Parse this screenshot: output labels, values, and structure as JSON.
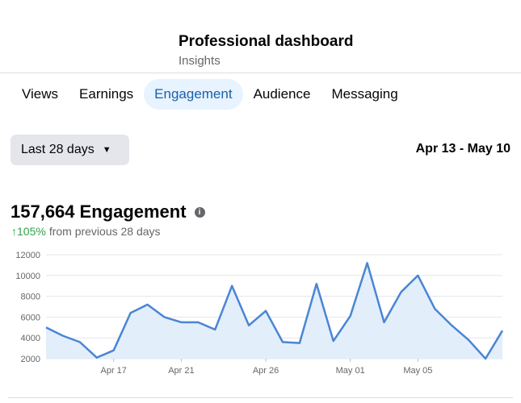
{
  "header": {
    "title": "Professional dashboard",
    "subtitle": "Insights"
  },
  "tabs": [
    {
      "label": "Views"
    },
    {
      "label": "Earnings"
    },
    {
      "label": "Engagement",
      "active": true
    },
    {
      "label": "Audience"
    },
    {
      "label": "Messaging"
    }
  ],
  "filter": {
    "range_label": "Last 28 days",
    "date_range": "Apr 13 - May 10"
  },
  "metric": {
    "value": "157,664",
    "label": "Engagement",
    "change_arrow": "↑",
    "change_pct": "105%",
    "change_note": "from previous 28 days"
  },
  "colors": {
    "accent": "#4a85d4",
    "fill": "#e3eefb",
    "positive": "#31a24c",
    "active_tab_bg": "#e7f3ff"
  },
  "chart_data": {
    "type": "area",
    "x": [
      "Apr 13",
      "Apr 14",
      "Apr 15",
      "Apr 16",
      "Apr 17",
      "Apr 18",
      "Apr 19",
      "Apr 20",
      "Apr 21",
      "Apr 22",
      "Apr 23",
      "Apr 24",
      "Apr 25",
      "Apr 26",
      "Apr 27",
      "Apr 28",
      "Apr 29",
      "Apr 30",
      "May 01",
      "May 02",
      "May 03",
      "May 04",
      "May 05",
      "May 06",
      "May 07",
      "May 08",
      "May 09",
      "May 10"
    ],
    "series": [
      {
        "values": [
          5000,
          4200,
          3600,
          2100,
          2800,
          6400,
          7200,
          6000,
          5500,
          5500,
          4800,
          9000,
          5200,
          6600,
          3600,
          3500,
          9200,
          3700,
          6100,
          11200,
          5500,
          8400,
          10000,
          6800,
          5200,
          3800,
          2000,
          4700
        ]
      }
    ],
    "x_ticks": [
      "Apr 17",
      "Apr 21",
      "Apr 26",
      "May 01",
      "May 05"
    ],
    "y_ticks": [
      "12000",
      "10000",
      "8000",
      "6000",
      "4000",
      "2000"
    ],
    "ylim": [
      2000,
      12000
    ],
    "grid": true
  }
}
